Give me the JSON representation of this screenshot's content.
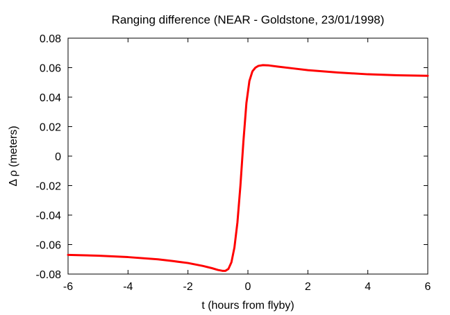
{
  "chart_data": {
    "type": "line",
    "title": "Ranging difference (NEAR - Goldstone, 23/01/1998)",
    "xlabel": "t (hours from flyby)",
    "ylabel": "Δ ρ (meters)",
    "xlim": [
      -6,
      6
    ],
    "ylim": [
      -0.08,
      0.08
    ],
    "xticks": [
      -6,
      -4,
      -2,
      0,
      2,
      4,
      6
    ],
    "xtick_labels": [
      "-6",
      "-4",
      "-2",
      "0",
      "2",
      "4",
      "6"
    ],
    "yticks": [
      -0.08,
      -0.06,
      -0.04,
      -0.02,
      0,
      0.02,
      0.04,
      0.06,
      0.08
    ],
    "ytick_labels": [
      "-0.08",
      "-0.06",
      "-0.04",
      "-0.02",
      "0",
      "0.02",
      "0.04",
      "0.06",
      "0.08"
    ],
    "grid": false,
    "series": [
      {
        "color": "#ff0000",
        "x": [
          -6.0,
          -5.0,
          -4.0,
          -3.0,
          -2.5,
          -2.0,
          -1.5,
          -1.2,
          -1.0,
          -0.85,
          -0.75,
          -0.65,
          -0.55,
          -0.45,
          -0.35,
          -0.25,
          -0.15,
          -0.05,
          0.05,
          0.15,
          0.25,
          0.35,
          0.5,
          0.7,
          1.0,
          1.5,
          2.0,
          3.0,
          4.0,
          5.0,
          6.0
        ],
        "y": [
          -0.067,
          -0.0675,
          -0.0685,
          -0.07,
          -0.0712,
          -0.0725,
          -0.0745,
          -0.076,
          -0.0772,
          -0.0778,
          -0.0778,
          -0.0765,
          -0.072,
          -0.062,
          -0.045,
          -0.02,
          0.01,
          0.036,
          0.051,
          0.0575,
          0.06,
          0.0612,
          0.0617,
          0.0615,
          0.0607,
          0.0595,
          0.0583,
          0.0567,
          0.0555,
          0.0548,
          0.0545
        ]
      }
    ]
  }
}
